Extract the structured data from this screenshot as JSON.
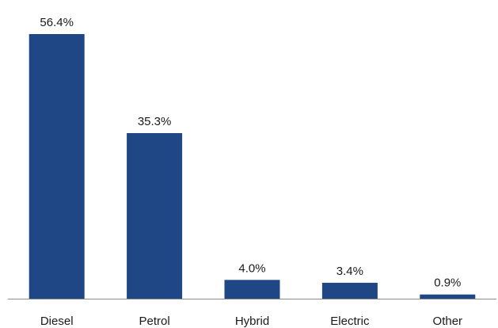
{
  "chart_data": {
    "type": "bar",
    "categories": [
      "Diesel",
      "Petrol",
      "Hybrid",
      "Electric",
      "Other"
    ],
    "values": [
      56.4,
      35.3,
      4.0,
      3.4,
      0.9
    ],
    "data_labels": [
      "56.4%",
      "35.3%",
      "4.0%",
      "3.4%",
      "0.9%"
    ],
    "unit": "%",
    "ylim": [
      0,
      60
    ],
    "grid": false,
    "legend": "none",
    "bar_color": "#1f4785",
    "axis_color": "#8c8c8c"
  }
}
